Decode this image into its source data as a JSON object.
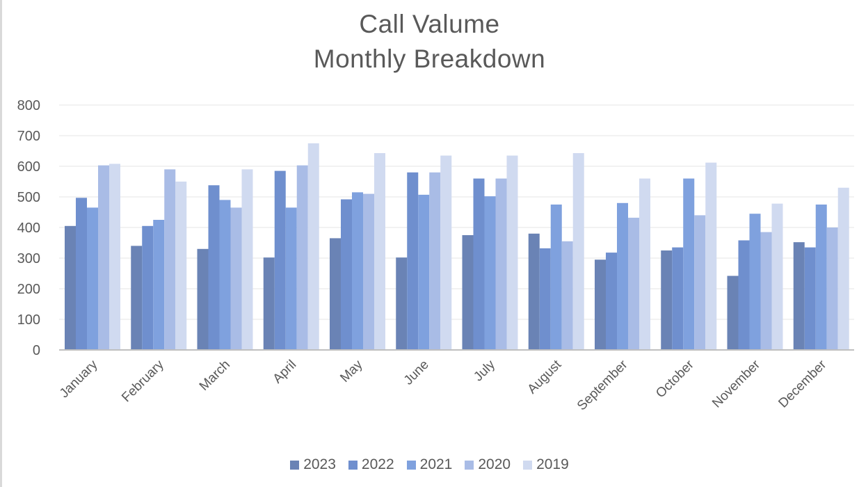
{
  "chart_data": {
    "type": "bar",
    "title": "Call Valume",
    "subtitle": "Monthly Breakdown",
    "categories": [
      "January",
      "February",
      "March",
      "April",
      "May",
      "June",
      "July",
      "August",
      "September",
      "October",
      "November",
      "December"
    ],
    "series": [
      {
        "name": "2023",
        "color": "#6a83b5",
        "values": [
          405,
          340,
          330,
          302,
          365,
          302,
          375,
          380,
          295,
          325,
          242,
          352
        ]
      },
      {
        "name": "2022",
        "color": "#6f8fce",
        "values": [
          497,
          405,
          538,
          585,
          492,
          580,
          560,
          332,
          318,
          335,
          358,
          335
        ]
      },
      {
        "name": "2021",
        "color": "#7fa1de",
        "values": [
          465,
          425,
          490,
          465,
          515,
          507,
          502,
          475,
          480,
          560,
          445,
          475
        ]
      },
      {
        "name": "2020",
        "color": "#a9bce6",
        "values": [
          603,
          590,
          465,
          603,
          510,
          580,
          560,
          355,
          432,
          440,
          385,
          400
        ]
      },
      {
        "name": "2019",
        "color": "#d0daf0",
        "values": [
          608,
          550,
          590,
          675,
          643,
          635,
          635,
          643,
          560,
          612,
          478,
          530
        ]
      }
    ],
    "y_ticks": [
      "0",
      "100",
      "200",
      "300",
      "400",
      "500",
      "600",
      "700",
      "800"
    ],
    "ylim": [
      0,
      800
    ],
    "grid": true,
    "legend": "bottom"
  }
}
